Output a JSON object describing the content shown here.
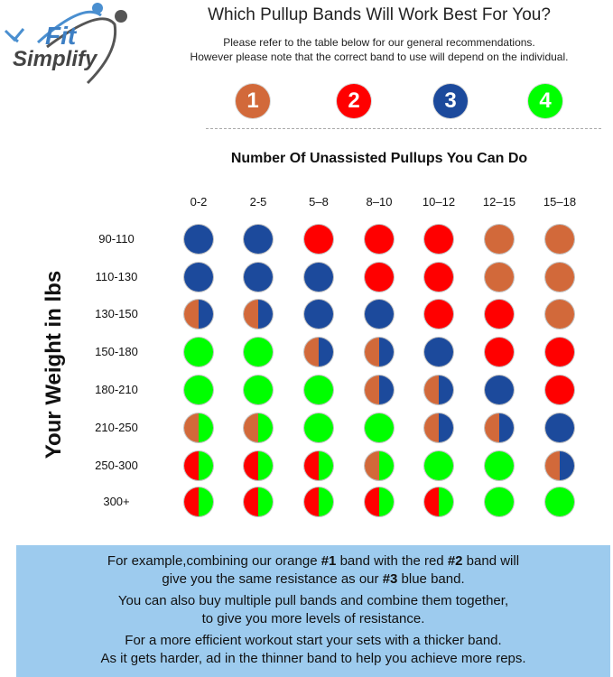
{
  "logo": {
    "text_top": "Fit",
    "text_bottom": "Simplify"
  },
  "header": {
    "title": "Which Pullup Bands Will Work Best For You?",
    "subtitle_1": "Please refer to the table below for our general recommendations.",
    "subtitle_2": "However please note that the correct band to use will depend on the individual."
  },
  "bands": [
    {
      "label": "1",
      "color": "#d2693a"
    },
    {
      "label": "2",
      "color": "#ff0000"
    },
    {
      "label": "3",
      "color": "#1c4a9c"
    },
    {
      "label": "4",
      "color": "#00ff00"
    }
  ],
  "colors": {
    "O": "#d2693a",
    "R": "#ff0000",
    "B": "#1c4a9c",
    "G": "#00ff00"
  },
  "grid": {
    "x_title": "Number Of Unassisted Pullups You Can Do",
    "y_title": "Your Weight in lbs",
    "columns": [
      "0-2",
      "2-5",
      "5–8",
      "8–10",
      "10–12",
      "12–15",
      "15–18"
    ],
    "rows": [
      {
        "label": "90-110",
        "cells": [
          "B",
          "B",
          "R",
          "R",
          "R",
          "O",
          "O"
        ]
      },
      {
        "label": "110-130",
        "cells": [
          "B",
          "B",
          "B",
          "R",
          "R",
          "O",
          "O"
        ]
      },
      {
        "label": "130-150",
        "cells": [
          "OB",
          "OB",
          "B",
          "B",
          "R",
          "R",
          "O"
        ]
      },
      {
        "label": "150-180",
        "cells": [
          "G",
          "G",
          "OB",
          "OB",
          "B",
          "R",
          "R"
        ]
      },
      {
        "label": "180-210",
        "cells": [
          "G",
          "G",
          "G",
          "OB",
          "OB",
          "B",
          "R"
        ]
      },
      {
        "label": "210-250",
        "cells": [
          "OG",
          "OG",
          "G",
          "G",
          "OB",
          "OB",
          "B"
        ]
      },
      {
        "label": "250-300",
        "cells": [
          "RG",
          "RG",
          "RG",
          "OG",
          "G",
          "G",
          "OB"
        ]
      },
      {
        "label": "300+",
        "cells": [
          "RG",
          "RG",
          "RG",
          "RG",
          "RG",
          "G",
          "G"
        ]
      }
    ]
  },
  "footer": {
    "line1a": "For example,combining our orange ",
    "line1b": "#1",
    "line1c": "  band with the red ",
    "line1d": "#2",
    "line1e": " band will",
    "line2a": "give you the same resistance as our ",
    "line2b": "#3",
    "line2c": "  blue band.",
    "line3": "You can also buy multiple pull bands and combine them together,",
    "line4": "to give you more levels of resistance.",
    "line5": "For a more efficient workout start your sets with a thicker band.",
    "line6": "As it gets harder, ad in the thinner band to help you achieve more reps."
  }
}
